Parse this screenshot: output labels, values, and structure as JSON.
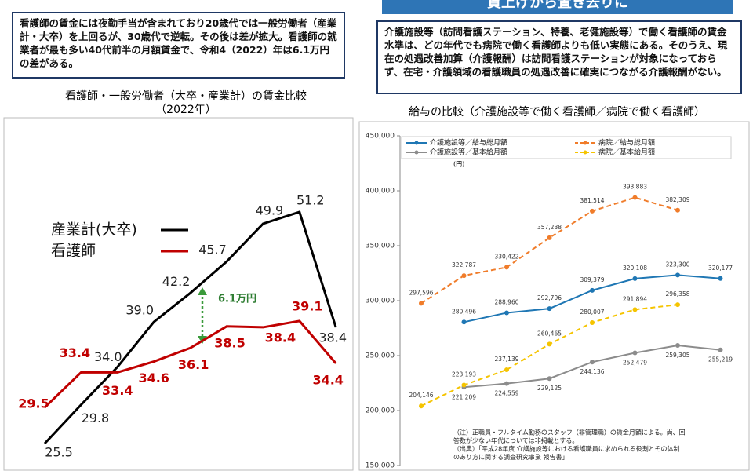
{
  "left_box": {
    "text": "看護師の賃金には夜勤手当が含まれており20歳代では一般労働者（産業計・大卒）を上回るが、30歳代で逆転。その後は差が拡大。看護師の就業者が最も多い40代前半の月額賃金で、令和4（2022）年は6.1万円の差がある。"
  },
  "right_header": {
    "text": "賃上げから置き去りに"
  },
  "right_box": {
    "text": "介護施設等（訪問看護ステーション、特養、老健施設等）で働く看護師の賃金水準は、どの年代でも病院で働く看護師よりも低い実態にある。そのうえ、現在の処遇改善加算（介護報酬）は訪問看護ステーションが対象になっておらず、在宅・介護領域の看護職員の処遇改善に確実につながる介護報酬がない。"
  },
  "chart_data": [
    {
      "type": "line",
      "title": "看護師・一般労働者（大卒・産業計）の賃金比較",
      "subtitle": "（2022年）",
      "annotation": "6.1万円",
      "series": [
        {
          "name": "産業計(大卒)",
          "color": "#000000",
          "values": [
            25.5,
            29.8,
            34.0,
            39.0,
            42.2,
            45.7,
            49.9,
            51.2,
            38.4
          ],
          "value_labels": [
            "25.5",
            "29.8",
            "34.0",
            "39.0",
            "42.2",
            "45.7",
            "49.9",
            "51.2",
            "38.4"
          ]
        },
        {
          "name": "看護師",
          "color": "#c00000",
          "values": [
            29.5,
            33.4,
            33.4,
            34.6,
            36.1,
            38.5,
            38.4,
            39.1,
            34.4
          ],
          "value_labels": [
            "29.5",
            "33.4",
            "33.4",
            "34.6",
            "36.1",
            "38.5",
            "38.4",
            "39.1",
            "34.4"
          ]
        }
      ]
    },
    {
      "type": "line",
      "title": "給与の比較（介護施設等で働く看護師／病院で働く看護師）",
      "y_unit": "(円)",
      "ylim": [
        150000,
        450000
      ],
      "yticks": [
        {
          "value": 150000,
          "label": "150,000"
        },
        {
          "value": 200000,
          "label": "200,000"
        },
        {
          "value": 250000,
          "label": "250,000"
        },
        {
          "value": 300000,
          "label": "300,000"
        },
        {
          "value": 350000,
          "label": "350,000"
        },
        {
          "value": 400000,
          "label": "400,000"
        },
        {
          "value": 450000,
          "label": "450,000"
        }
      ],
      "series": [
        {
          "name": "介護施設等／給与総月額",
          "color": "#1f77b4",
          "dashed": false,
          "values": [
            null,
            280496,
            288960,
            292796,
            309379,
            320108,
            323300,
            320177
          ],
          "value_labels": [
            null,
            "280,496",
            "288,960",
            "292,796",
            "309,379",
            "320,108",
            "323,300",
            "320,177"
          ]
        },
        {
          "name": "病院／給与総月額",
          "color": "#f07c2a",
          "dashed": true,
          "values": [
            297596,
            322787,
            330422,
            357238,
            381514,
            393883,
            382309,
            null
          ],
          "value_labels": [
            "297,596",
            "322,787",
            "330,422",
            "357,238",
            "381,514",
            "393,883",
            "382,309",
            null
          ]
        },
        {
          "name": "介護施設等／基本給月額",
          "color": "#8c8c8c",
          "dashed": false,
          "values": [
            null,
            221209,
            224559,
            229125,
            244136,
            252479,
            259305,
            255219
          ],
          "value_labels": [
            null,
            "221,209",
            "224,559",
            "229,125",
            "244,136",
            "252,479",
            "259,305",
            "255,219"
          ]
        },
        {
          "name": "病院／基本給月額",
          "color": "#f5c400",
          "dashed": true,
          "values": [
            204146,
            223193,
            237139,
            260465,
            280007,
            291894,
            296358,
            null
          ],
          "value_labels": [
            "204,146",
            "223,193",
            "237,139",
            "260,465",
            "280,007",
            "291,894",
            "296,358",
            null
          ]
        }
      ],
      "notes": [
        "（注）正職員・フルタイム勤務のスタッフ（非管理職）の賃金月額による。尚、回",
        "答数が少ない年代については非掲載とする。",
        "（出典）「平成28年度 介護施設等における看護職員に求められる役割とその体制",
        "のあり方に関する調査研究事業 報告書」"
      ]
    }
  ]
}
